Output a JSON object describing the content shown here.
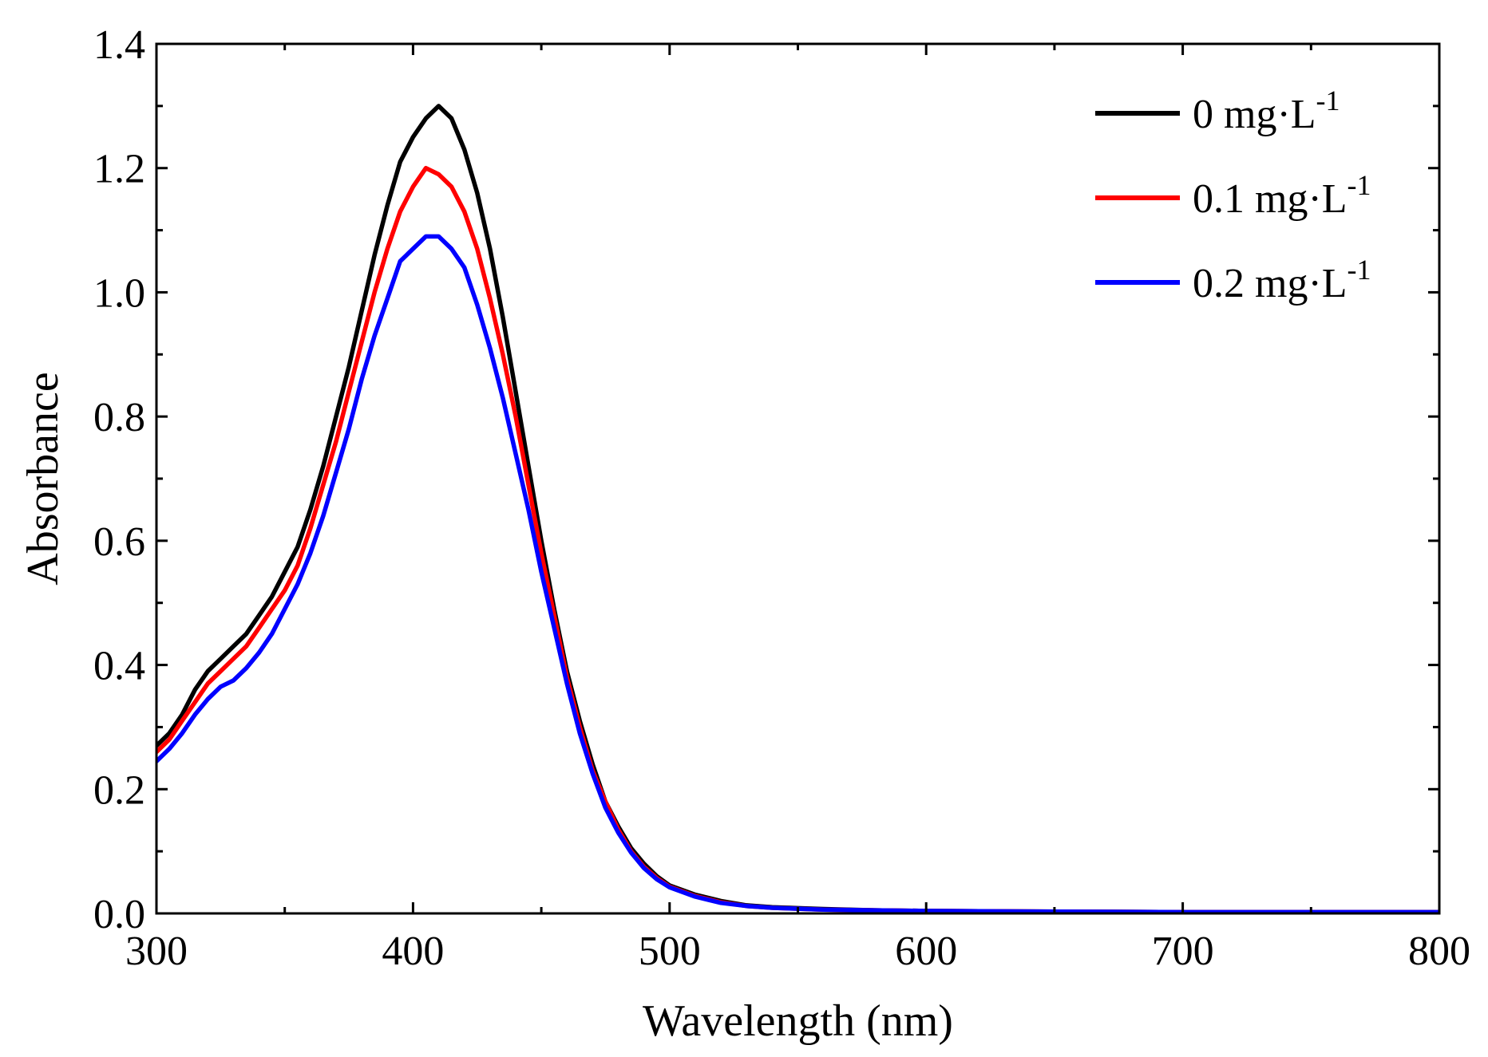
{
  "chart_data": {
    "type": "line",
    "title": "",
    "xlabel": "Wavelength (nm)",
    "ylabel": "Absorbance",
    "xlim": [
      300,
      800
    ],
    "ylim": [
      0.0,
      1.4
    ],
    "xticks": [
      300,
      400,
      500,
      600,
      700,
      800
    ],
    "xtick_labels": [
      "300",
      "400",
      "500",
      "600",
      "700",
      "800"
    ],
    "yticks": [
      0.0,
      0.2,
      0.4,
      0.6,
      0.8,
      1.0,
      1.2,
      1.4
    ],
    "ytick_labels": [
      "0.0",
      "0.2",
      "0.4",
      "0.6",
      "0.8",
      "1.0",
      "1.2",
      "1.4"
    ],
    "grid": false,
    "legend_position": "top-right",
    "series": [
      {
        "name": "0 mg·L",
        "name_superscript": "-1",
        "color": "#000000",
        "points": [
          [
            300,
            0.27
          ],
          [
            305,
            0.29
          ],
          [
            310,
            0.32
          ],
          [
            315,
            0.36
          ],
          [
            320,
            0.39
          ],
          [
            325,
            0.41
          ],
          [
            330,
            0.43
          ],
          [
            335,
            0.45
          ],
          [
            340,
            0.48
          ],
          [
            345,
            0.51
          ],
          [
            350,
            0.55
          ],
          [
            355,
            0.59
          ],
          [
            360,
            0.65
          ],
          [
            365,
            0.72
          ],
          [
            370,
            0.8
          ],
          [
            375,
            0.88
          ],
          [
            380,
            0.97
          ],
          [
            385,
            1.06
          ],
          [
            390,
            1.14
          ],
          [
            395,
            1.21
          ],
          [
            400,
            1.25
          ],
          [
            405,
            1.28
          ],
          [
            410,
            1.3
          ],
          [
            415,
            1.28
          ],
          [
            420,
            1.23
          ],
          [
            425,
            1.16
          ],
          [
            430,
            1.07
          ],
          [
            435,
            0.96
          ],
          [
            440,
            0.84
          ],
          [
            445,
            0.72
          ],
          [
            450,
            0.6
          ],
          [
            455,
            0.49
          ],
          [
            460,
            0.39
          ],
          [
            465,
            0.31
          ],
          [
            470,
            0.24
          ],
          [
            475,
            0.18
          ],
          [
            480,
            0.14
          ],
          [
            485,
            0.105
          ],
          [
            490,
            0.08
          ],
          [
            495,
            0.06
          ],
          [
            500,
            0.045
          ],
          [
            510,
            0.03
          ],
          [
            520,
            0.02
          ],
          [
            530,
            0.013
          ],
          [
            540,
            0.01
          ],
          [
            560,
            0.007
          ],
          [
            580,
            0.005
          ],
          [
            600,
            0.004
          ],
          [
            650,
            0.003
          ],
          [
            700,
            0.002
          ],
          [
            750,
            0.002
          ],
          [
            800,
            0.002
          ]
        ]
      },
      {
        "name": "0.1 mg·L",
        "name_superscript": "-1",
        "color": "#ff0000",
        "points": [
          [
            300,
            0.26
          ],
          [
            305,
            0.28
          ],
          [
            310,
            0.31
          ],
          [
            315,
            0.34
          ],
          [
            320,
            0.37
          ],
          [
            325,
            0.39
          ],
          [
            330,
            0.41
          ],
          [
            335,
            0.43
          ],
          [
            340,
            0.46
          ],
          [
            345,
            0.49
          ],
          [
            350,
            0.52
          ],
          [
            355,
            0.56
          ],
          [
            360,
            0.62
          ],
          [
            365,
            0.69
          ],
          [
            370,
            0.76
          ],
          [
            375,
            0.84
          ],
          [
            380,
            0.92
          ],
          [
            385,
            1.0
          ],
          [
            390,
            1.07
          ],
          [
            395,
            1.13
          ],
          [
            400,
            1.17
          ],
          [
            405,
            1.2
          ],
          [
            410,
            1.19
          ],
          [
            415,
            1.17
          ],
          [
            420,
            1.13
          ],
          [
            425,
            1.07
          ],
          [
            430,
            0.99
          ],
          [
            435,
            0.9
          ],
          [
            440,
            0.8
          ],
          [
            445,
            0.69
          ],
          [
            450,
            0.58
          ],
          [
            455,
            0.48
          ],
          [
            460,
            0.38
          ],
          [
            465,
            0.3
          ],
          [
            470,
            0.23
          ],
          [
            475,
            0.18
          ],
          [
            480,
            0.135
          ],
          [
            485,
            0.1
          ],
          [
            490,
            0.075
          ],
          [
            495,
            0.057
          ],
          [
            500,
            0.043
          ],
          [
            510,
            0.028
          ],
          [
            520,
            0.018
          ],
          [
            530,
            0.012
          ],
          [
            540,
            0.009
          ],
          [
            560,
            0.006
          ],
          [
            580,
            0.005
          ],
          [
            600,
            0.004
          ],
          [
            650,
            0.003
          ],
          [
            700,
            0.002
          ],
          [
            750,
            0.002
          ],
          [
            800,
            0.002
          ]
        ]
      },
      {
        "name": "0.2 mg·L",
        "name_superscript": "-1",
        "color": "#0000ff",
        "points": [
          [
            300,
            0.245
          ],
          [
            305,
            0.265
          ],
          [
            310,
            0.29
          ],
          [
            315,
            0.32
          ],
          [
            320,
            0.345
          ],
          [
            325,
            0.365
          ],
          [
            330,
            0.375
          ],
          [
            335,
            0.395
          ],
          [
            340,
            0.42
          ],
          [
            345,
            0.45
          ],
          [
            350,
            0.49
          ],
          [
            355,
            0.53
          ],
          [
            360,
            0.58
          ],
          [
            365,
            0.64
          ],
          [
            370,
            0.71
          ],
          [
            375,
            0.78
          ],
          [
            380,
            0.86
          ],
          [
            385,
            0.93
          ],
          [
            390,
            0.99
          ],
          [
            395,
            1.05
          ],
          [
            400,
            1.07
          ],
          [
            405,
            1.09
          ],
          [
            410,
            1.09
          ],
          [
            415,
            1.07
          ],
          [
            420,
            1.04
          ],
          [
            425,
            0.98
          ],
          [
            430,
            0.91
          ],
          [
            435,
            0.83
          ],
          [
            440,
            0.74
          ],
          [
            445,
            0.65
          ],
          [
            450,
            0.55
          ],
          [
            455,
            0.46
          ],
          [
            460,
            0.37
          ],
          [
            465,
            0.29
          ],
          [
            470,
            0.225
          ],
          [
            475,
            0.17
          ],
          [
            480,
            0.13
          ],
          [
            485,
            0.098
          ],
          [
            490,
            0.073
          ],
          [
            495,
            0.055
          ],
          [
            500,
            0.042
          ],
          [
            510,
            0.027
          ],
          [
            520,
            0.017
          ],
          [
            530,
            0.012
          ],
          [
            540,
            0.009
          ],
          [
            560,
            0.006
          ],
          [
            580,
            0.005
          ],
          [
            600,
            0.004
          ],
          [
            650,
            0.003
          ],
          [
            700,
            0.002
          ],
          [
            750,
            0.002
          ],
          [
            800,
            0.002
          ]
        ]
      }
    ]
  }
}
